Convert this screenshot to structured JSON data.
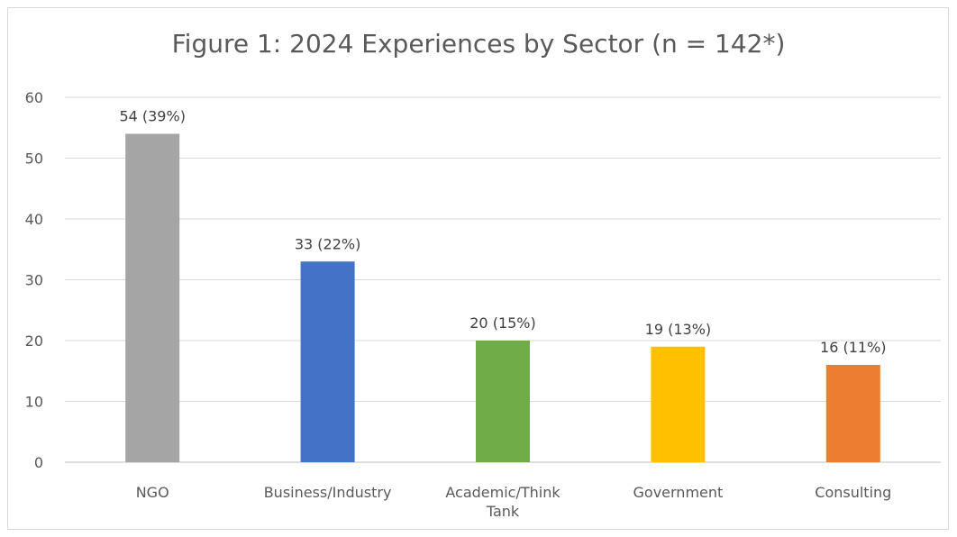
{
  "chart_data": {
    "type": "bar",
    "title": "Figure 1: 2024 Experiences by Sector (n = 142*)",
    "categories": [
      "NGO",
      "Business/Industry",
      "Academic/Think Tank",
      "Government",
      "Consulting"
    ],
    "values": [
      54,
      33,
      20,
      19,
      16
    ],
    "data_labels": [
      "54 (39%)",
      "33 (22%)",
      "20 (15%)",
      "19 (13%)",
      "16 (11%)"
    ],
    "colors": [
      "#a5a5a5",
      "#4472c4",
      "#70ad47",
      "#ffc000",
      "#ed7d31"
    ],
    "ylim": [
      0,
      60
    ],
    "yticks": [
      "0",
      "10",
      "20",
      "30",
      "40",
      "50",
      "60"
    ],
    "grid": true,
    "legend": "none"
  }
}
